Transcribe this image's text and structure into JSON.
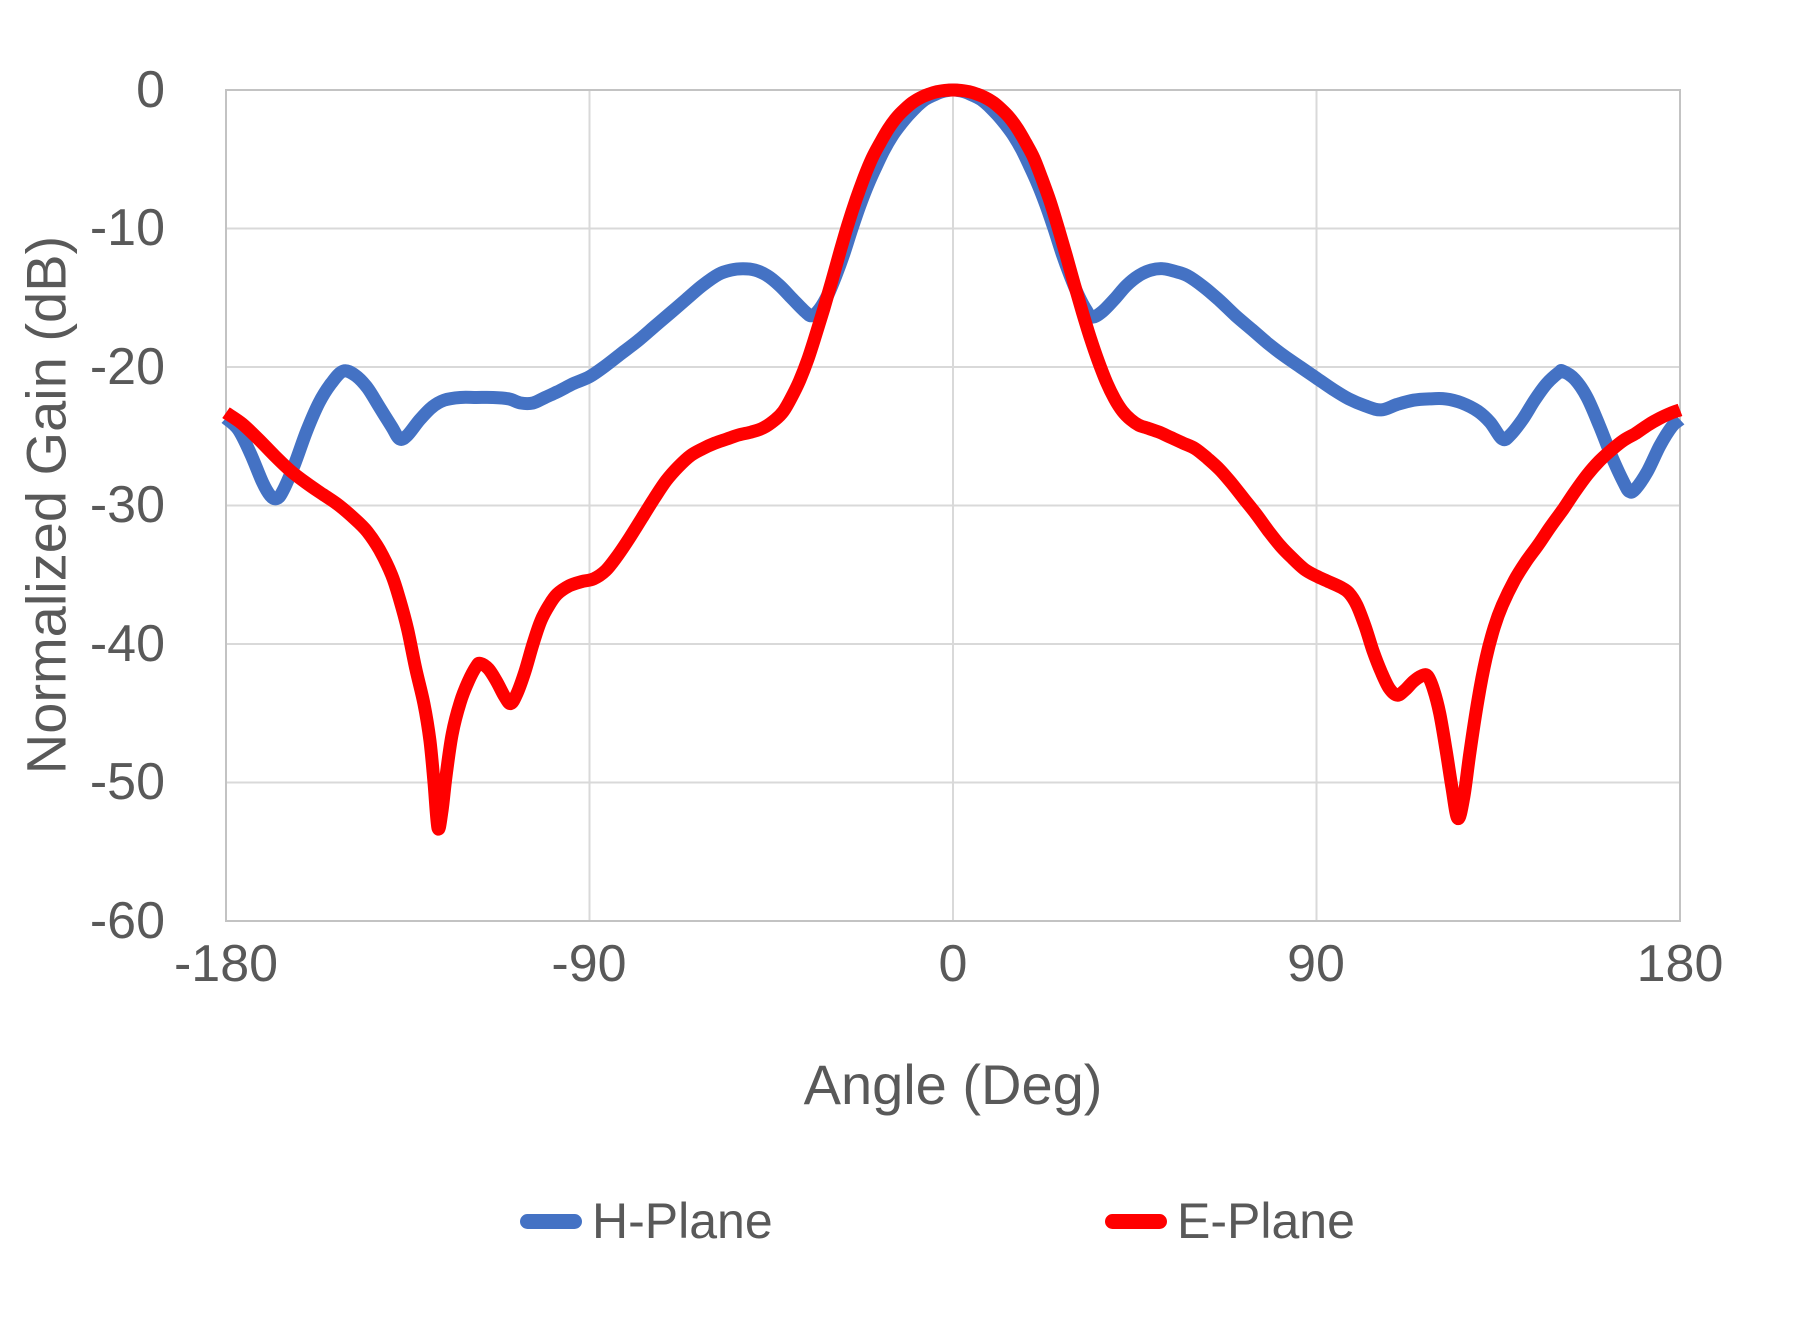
{
  "chart_data": {
    "type": "line",
    "title": "",
    "xlabel": "Angle (Deg)",
    "ylabel": "Normalized Gain (dB)",
    "xlim": [
      -180,
      180
    ],
    "ylim": [
      -60,
      0
    ],
    "x_ticks": [
      -180,
      -90,
      0,
      90,
      180
    ],
    "y_ticks": [
      0,
      -10,
      -20,
      -30,
      -40,
      -50,
      -60
    ],
    "grid": true,
    "legend_position": "bottom",
    "plot_border_color": "#C3C3C3",
    "gridline_color": "#D9D9D9",
    "text_color": "#595959",
    "series": [
      {
        "name": "H-Plane",
        "color": "#4472C4",
        "points": [
          [
            -180,
            -23.7
          ],
          [
            -177,
            -24.5
          ],
          [
            -174,
            -26.2
          ],
          [
            -171,
            -28.3
          ],
          [
            -169,
            -29.3
          ],
          [
            -167.5,
            -29.5
          ],
          [
            -166,
            -29.0
          ],
          [
            -163,
            -27.0
          ],
          [
            -160,
            -24.6
          ],
          [
            -157,
            -22.6
          ],
          [
            -154,
            -21.2
          ],
          [
            -151,
            -20.3
          ],
          [
            -148,
            -20.6
          ],
          [
            -145,
            -21.5
          ],
          [
            -142,
            -22.9
          ],
          [
            -139,
            -24.3
          ],
          [
            -137,
            -25.2
          ],
          [
            -135,
            -24.9
          ],
          [
            -132,
            -23.8
          ],
          [
            -129,
            -22.9
          ],
          [
            -126,
            -22.4
          ],
          [
            -122,
            -22.2
          ],
          [
            -118,
            -22.2
          ],
          [
            -114,
            -22.2
          ],
          [
            -110,
            -22.3
          ],
          [
            -107,
            -22.6
          ],
          [
            -104,
            -22.6
          ],
          [
            -101,
            -22.2
          ],
          [
            -98,
            -21.8
          ],
          [
            -94,
            -21.2
          ],
          [
            -90,
            -20.7
          ],
          [
            -86,
            -19.9
          ],
          [
            -82,
            -19.0
          ],
          [
            -78,
            -18.1
          ],
          [
            -74,
            -17.1
          ],
          [
            -70,
            -16.1
          ],
          [
            -66,
            -15.1
          ],
          [
            -62,
            -14.1
          ],
          [
            -58,
            -13.3
          ],
          [
            -55,
            -13.0
          ],
          [
            -52,
            -12.9
          ],
          [
            -49,
            -13.0
          ],
          [
            -46,
            -13.4
          ],
          [
            -43,
            -14.1
          ],
          [
            -40,
            -15.0
          ],
          [
            -37,
            -15.9
          ],
          [
            -35,
            -16.3
          ],
          [
            -33,
            -15.8
          ],
          [
            -31,
            -14.8
          ],
          [
            -29,
            -13.4
          ],
          [
            -27,
            -11.8
          ],
          [
            -25,
            -10.0
          ],
          [
            -23,
            -8.3
          ],
          [
            -21,
            -6.8
          ],
          [
            -19,
            -5.5
          ],
          [
            -17,
            -4.3
          ],
          [
            -15,
            -3.3
          ],
          [
            -13,
            -2.5
          ],
          [
            -11,
            -1.8
          ],
          [
            -9,
            -1.2
          ],
          [
            -7,
            -0.7
          ],
          [
            -5,
            -0.4
          ],
          [
            -3,
            -0.15
          ],
          [
            -1,
            -0.02
          ],
          [
            0,
            0
          ],
          [
            1,
            -0.02
          ],
          [
            3,
            -0.15
          ],
          [
            5,
            -0.4
          ],
          [
            7,
            -0.7
          ],
          [
            9,
            -1.2
          ],
          [
            11,
            -1.8
          ],
          [
            13,
            -2.5
          ],
          [
            15,
            -3.3
          ],
          [
            17,
            -4.3
          ],
          [
            19,
            -5.5
          ],
          [
            21,
            -6.8
          ],
          [
            23,
            -8.3
          ],
          [
            25,
            -10.0
          ],
          [
            27,
            -11.8
          ],
          [
            29,
            -13.4
          ],
          [
            31,
            -14.8
          ],
          [
            33,
            -15.9
          ],
          [
            34.5,
            -16.4
          ],
          [
            37,
            -16.0
          ],
          [
            40,
            -15.1
          ],
          [
            43,
            -14.1
          ],
          [
            46,
            -13.4
          ],
          [
            49,
            -13.0
          ],
          [
            52,
            -12.9
          ],
          [
            55,
            -13.1
          ],
          [
            58,
            -13.4
          ],
          [
            62,
            -14.2
          ],
          [
            66,
            -15.2
          ],
          [
            70,
            -16.3
          ],
          [
            74,
            -17.3
          ],
          [
            78,
            -18.3
          ],
          [
            82,
            -19.2
          ],
          [
            86,
            -20.0
          ],
          [
            90,
            -20.8
          ],
          [
            94,
            -21.6
          ],
          [
            98,
            -22.3
          ],
          [
            102,
            -22.8
          ],
          [
            106,
            -23.1
          ],
          [
            110,
            -22.7
          ],
          [
            114,
            -22.4
          ],
          [
            118,
            -22.3
          ],
          [
            122,
            -22.3
          ],
          [
            126,
            -22.6
          ],
          [
            130,
            -23.2
          ],
          [
            133,
            -24.0
          ],
          [
            136,
            -25.2
          ],
          [
            138,
            -24.9
          ],
          [
            141,
            -23.8
          ],
          [
            144,
            -22.4
          ],
          [
            147,
            -21.2
          ],
          [
            150,
            -20.4
          ],
          [
            151,
            -20.3
          ],
          [
            154,
            -20.9
          ],
          [
            157,
            -22.2
          ],
          [
            160,
            -24.2
          ],
          [
            163,
            -26.4
          ],
          [
            166,
            -28.3
          ],
          [
            167.5,
            -29.0
          ],
          [
            169,
            -28.8
          ],
          [
            172,
            -27.5
          ],
          [
            175,
            -25.7
          ],
          [
            178,
            -24.3
          ],
          [
            180,
            -23.8
          ]
        ]
      },
      {
        "name": "E-Plane",
        "color": "#FF0000",
        "points": [
          [
            -180,
            -23.3
          ],
          [
            -176,
            -24.1
          ],
          [
            -172,
            -25.2
          ],
          [
            -168,
            -26.4
          ],
          [
            -164,
            -27.5
          ],
          [
            -160,
            -28.4
          ],
          [
            -156,
            -29.2
          ],
          [
            -152,
            -30.0
          ],
          [
            -148,
            -31.0
          ],
          [
            -145,
            -31.9
          ],
          [
            -142,
            -33.2
          ],
          [
            -139,
            -35.0
          ],
          [
            -137,
            -36.8
          ],
          [
            -135,
            -39.0
          ],
          [
            -133,
            -41.8
          ],
          [
            -131,
            -44.3
          ],
          [
            -129.5,
            -47.0
          ],
          [
            -128.5,
            -50.0
          ],
          [
            -127.5,
            -53.3
          ],
          [
            -126.5,
            -52.0
          ],
          [
            -125.5,
            -49.5
          ],
          [
            -124,
            -46.5
          ],
          [
            -122,
            -44.2
          ],
          [
            -120,
            -42.7
          ],
          [
            -118,
            -41.6
          ],
          [
            -117,
            -41.4
          ],
          [
            -115,
            -41.8
          ],
          [
            -113,
            -42.7
          ],
          [
            -111,
            -43.8
          ],
          [
            -109.5,
            -44.3
          ],
          [
            -108,
            -43.6
          ],
          [
            -106,
            -42.0
          ],
          [
            -104,
            -40.0
          ],
          [
            -102,
            -38.3
          ],
          [
            -100,
            -37.2
          ],
          [
            -98,
            -36.4
          ],
          [
            -95,
            -35.8
          ],
          [
            -92,
            -35.5
          ],
          [
            -89,
            -35.3
          ],
          [
            -86,
            -34.7
          ],
          [
            -83,
            -33.6
          ],
          [
            -80,
            -32.3
          ],
          [
            -77,
            -30.9
          ],
          [
            -74,
            -29.5
          ],
          [
            -71,
            -28.2
          ],
          [
            -68,
            -27.2
          ],
          [
            -65,
            -26.4
          ],
          [
            -62,
            -25.9
          ],
          [
            -59,
            -25.5
          ],
          [
            -56,
            -25.2
          ],
          [
            -53,
            -24.9
          ],
          [
            -50,
            -24.7
          ],
          [
            -47,
            -24.4
          ],
          [
            -44,
            -23.8
          ],
          [
            -42,
            -23.2
          ],
          [
            -40,
            -22.2
          ],
          [
            -38,
            -21.0
          ],
          [
            -36,
            -19.5
          ],
          [
            -34,
            -17.7
          ],
          [
            -32,
            -15.8
          ],
          [
            -30,
            -13.8
          ],
          [
            -28,
            -11.7
          ],
          [
            -26,
            -9.7
          ],
          [
            -24,
            -7.9
          ],
          [
            -22,
            -6.3
          ],
          [
            -20,
            -4.9
          ],
          [
            -18,
            -3.8
          ],
          [
            -16,
            -2.8
          ],
          [
            -14,
            -2.0
          ],
          [
            -12,
            -1.4
          ],
          [
            -10,
            -0.9
          ],
          [
            -8,
            -0.55
          ],
          [
            -6,
            -0.3
          ],
          [
            -4,
            -0.12
          ],
          [
            -2,
            -0.03
          ],
          [
            0,
            0
          ],
          [
            2,
            -0.03
          ],
          [
            4,
            -0.12
          ],
          [
            6,
            -0.3
          ],
          [
            8,
            -0.55
          ],
          [
            10,
            -0.9
          ],
          [
            12,
            -1.4
          ],
          [
            14,
            -2.0
          ],
          [
            16,
            -2.8
          ],
          [
            18,
            -3.8
          ],
          [
            20,
            -4.9
          ],
          [
            22,
            -6.4
          ],
          [
            24,
            -8.0
          ],
          [
            26,
            -9.9
          ],
          [
            28,
            -11.9
          ],
          [
            30,
            -14.0
          ],
          [
            32,
            -16.0
          ],
          [
            34,
            -17.9
          ],
          [
            36,
            -19.6
          ],
          [
            38,
            -21.1
          ],
          [
            40,
            -22.3
          ],
          [
            42,
            -23.2
          ],
          [
            44,
            -23.8
          ],
          [
            46,
            -24.2
          ],
          [
            48,
            -24.4
          ],
          [
            51,
            -24.7
          ],
          [
            54,
            -25.1
          ],
          [
            57,
            -25.5
          ],
          [
            60,
            -25.9
          ],
          [
            63,
            -26.6
          ],
          [
            66,
            -27.4
          ],
          [
            69,
            -28.4
          ],
          [
            72,
            -29.5
          ],
          [
            75,
            -30.6
          ],
          [
            78,
            -31.8
          ],
          [
            81,
            -32.9
          ],
          [
            84,
            -33.8
          ],
          [
            87,
            -34.6
          ],
          [
            90,
            -35.1
          ],
          [
            93,
            -35.5
          ],
          [
            96,
            -35.9
          ],
          [
            98,
            -36.3
          ],
          [
            100,
            -37.2
          ],
          [
            102,
            -38.7
          ],
          [
            104,
            -40.5
          ],
          [
            106,
            -42.0
          ],
          [
            108,
            -43.2
          ],
          [
            110,
            -43.7
          ],
          [
            112,
            -43.3
          ],
          [
            114,
            -42.7
          ],
          [
            116,
            -42.3
          ],
          [
            117.5,
            -42.3
          ],
          [
            119,
            -43.3
          ],
          [
            120.5,
            -45.0
          ],
          [
            122,
            -47.5
          ],
          [
            123.5,
            -50.3
          ],
          [
            125,
            -52.6
          ],
          [
            126.5,
            -51.0
          ],
          [
            128,
            -47.8
          ],
          [
            130,
            -44.0
          ],
          [
            132,
            -41.0
          ],
          [
            134,
            -38.8
          ],
          [
            136,
            -37.2
          ],
          [
            139,
            -35.4
          ],
          [
            142,
            -34.0
          ],
          [
            145,
            -32.8
          ],
          [
            148,
            -31.5
          ],
          [
            151,
            -30.3
          ],
          [
            154,
            -29.0
          ],
          [
            157,
            -27.8
          ],
          [
            160,
            -26.8
          ],
          [
            163,
            -26.0
          ],
          [
            166,
            -25.3
          ],
          [
            169,
            -24.8
          ],
          [
            172,
            -24.2
          ],
          [
            175,
            -23.7
          ],
          [
            178,
            -23.3
          ],
          [
            180,
            -23.1
          ]
        ]
      }
    ]
  }
}
